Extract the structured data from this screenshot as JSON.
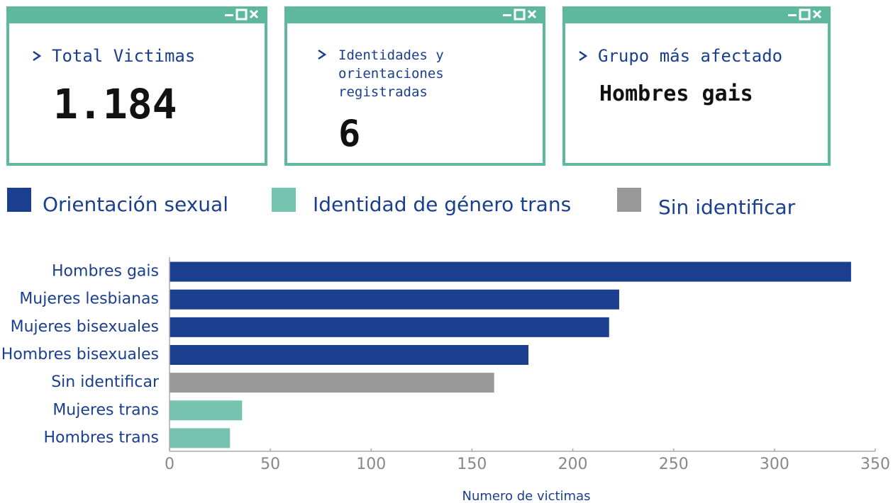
{
  "cards": [
    {
      "title": "Total Victimas",
      "value": "1.184"
    },
    {
      "title": "Identidades y orientaciones registradas",
      "value": "6"
    },
    {
      "title": "Grupo más afectado",
      "value": "Hombres gais"
    }
  ],
  "chart_data": {
    "type": "barh",
    "legend": [
      {
        "name": "Orientación sexual",
        "color": "#1a3f8f"
      },
      {
        "name": "Identidad de género trans",
        "color": "#76c4b0"
      },
      {
        "name": "Sin identificar",
        "color": "#999999"
      }
    ],
    "categories": [
      "Hombres gais",
      "Mujeres lesbianas",
      "Mujeres bisexuales",
      "Hombres bisexuales",
      "Sin identificar",
      "Mujeres trans",
      "Hombres trans"
    ],
    "values": [
      338,
      223,
      218,
      178,
      161,
      36,
      30
    ],
    "colors": [
      "#1a3f8f",
      "#1a3f8f",
      "#1a3f8f",
      "#1a3f8f",
      "#999999",
      "#76c4b0",
      "#76c4b0"
    ],
    "xlabel": "Numero de victimas",
    "xlim": [
      0,
      350
    ],
    "xticks": [
      0,
      50,
      100,
      150,
      200,
      250,
      300,
      350
    ]
  }
}
